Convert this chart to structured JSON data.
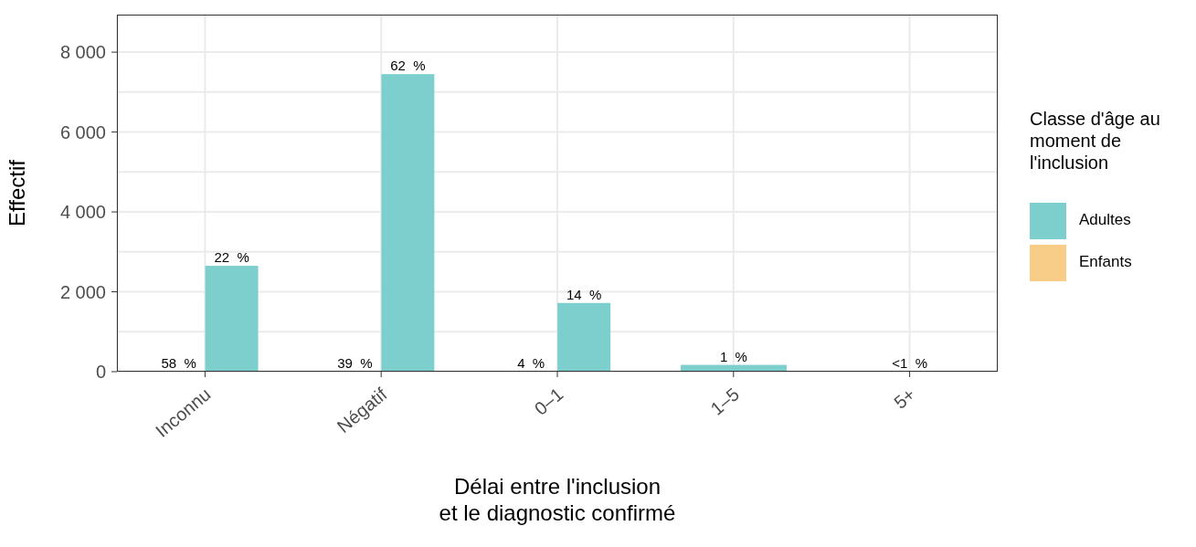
{
  "chart_data": {
    "type": "bar",
    "xlabel": "Délai entre l'inclusion\net le diagnostic confirmé",
    "ylabel": "Effectif",
    "legend_title": "Classe d'âge au moment de l'inclusion",
    "categories": [
      "Inconnu",
      "Négatif",
      "0–1",
      "1–5",
      "5+"
    ],
    "series": [
      {
        "name": "Enfants",
        "color": "#f8cd88",
        "values": [
          0,
          0,
          0,
          null,
          null
        ]
      },
      {
        "name": "Adultes",
        "color": "#7ccfcc",
        "values": [
          2650,
          7450,
          1720,
          170,
          0
        ]
      }
    ],
    "annotations": [
      {
        "text": "58  %",
        "x": "Inconnu",
        "y": 0
      },
      {
        "text": "22  %",
        "x": "Inconnu",
        "y": 2650
      },
      {
        "text": "39  %",
        "x": "Négatif",
        "y": 0
      },
      {
        "text": "62  %",
        "x": "Négatif",
        "y": 7450
      },
      {
        "text": "4  %",
        "x": "0–1",
        "y": 0
      },
      {
        "text": "14  %",
        "x": "0–1",
        "y": 1720
      },
      {
        "text": "1  %",
        "x": "1–5",
        "y": 170
      },
      {
        "text": "<1  %",
        "x": "5+",
        "y": 0
      }
    ],
    "ylim": [
      0,
      8940
    ],
    "yticks": [
      {
        "value": 0,
        "label": "0"
      },
      {
        "value": 2000,
        "label": "2 000"
      },
      {
        "value": 4000,
        "label": "4 000"
      },
      {
        "value": 6000,
        "label": "6 000"
      },
      {
        "value": 8000,
        "label": "8 000"
      }
    ],
    "grid": true,
    "legend": "right"
  }
}
